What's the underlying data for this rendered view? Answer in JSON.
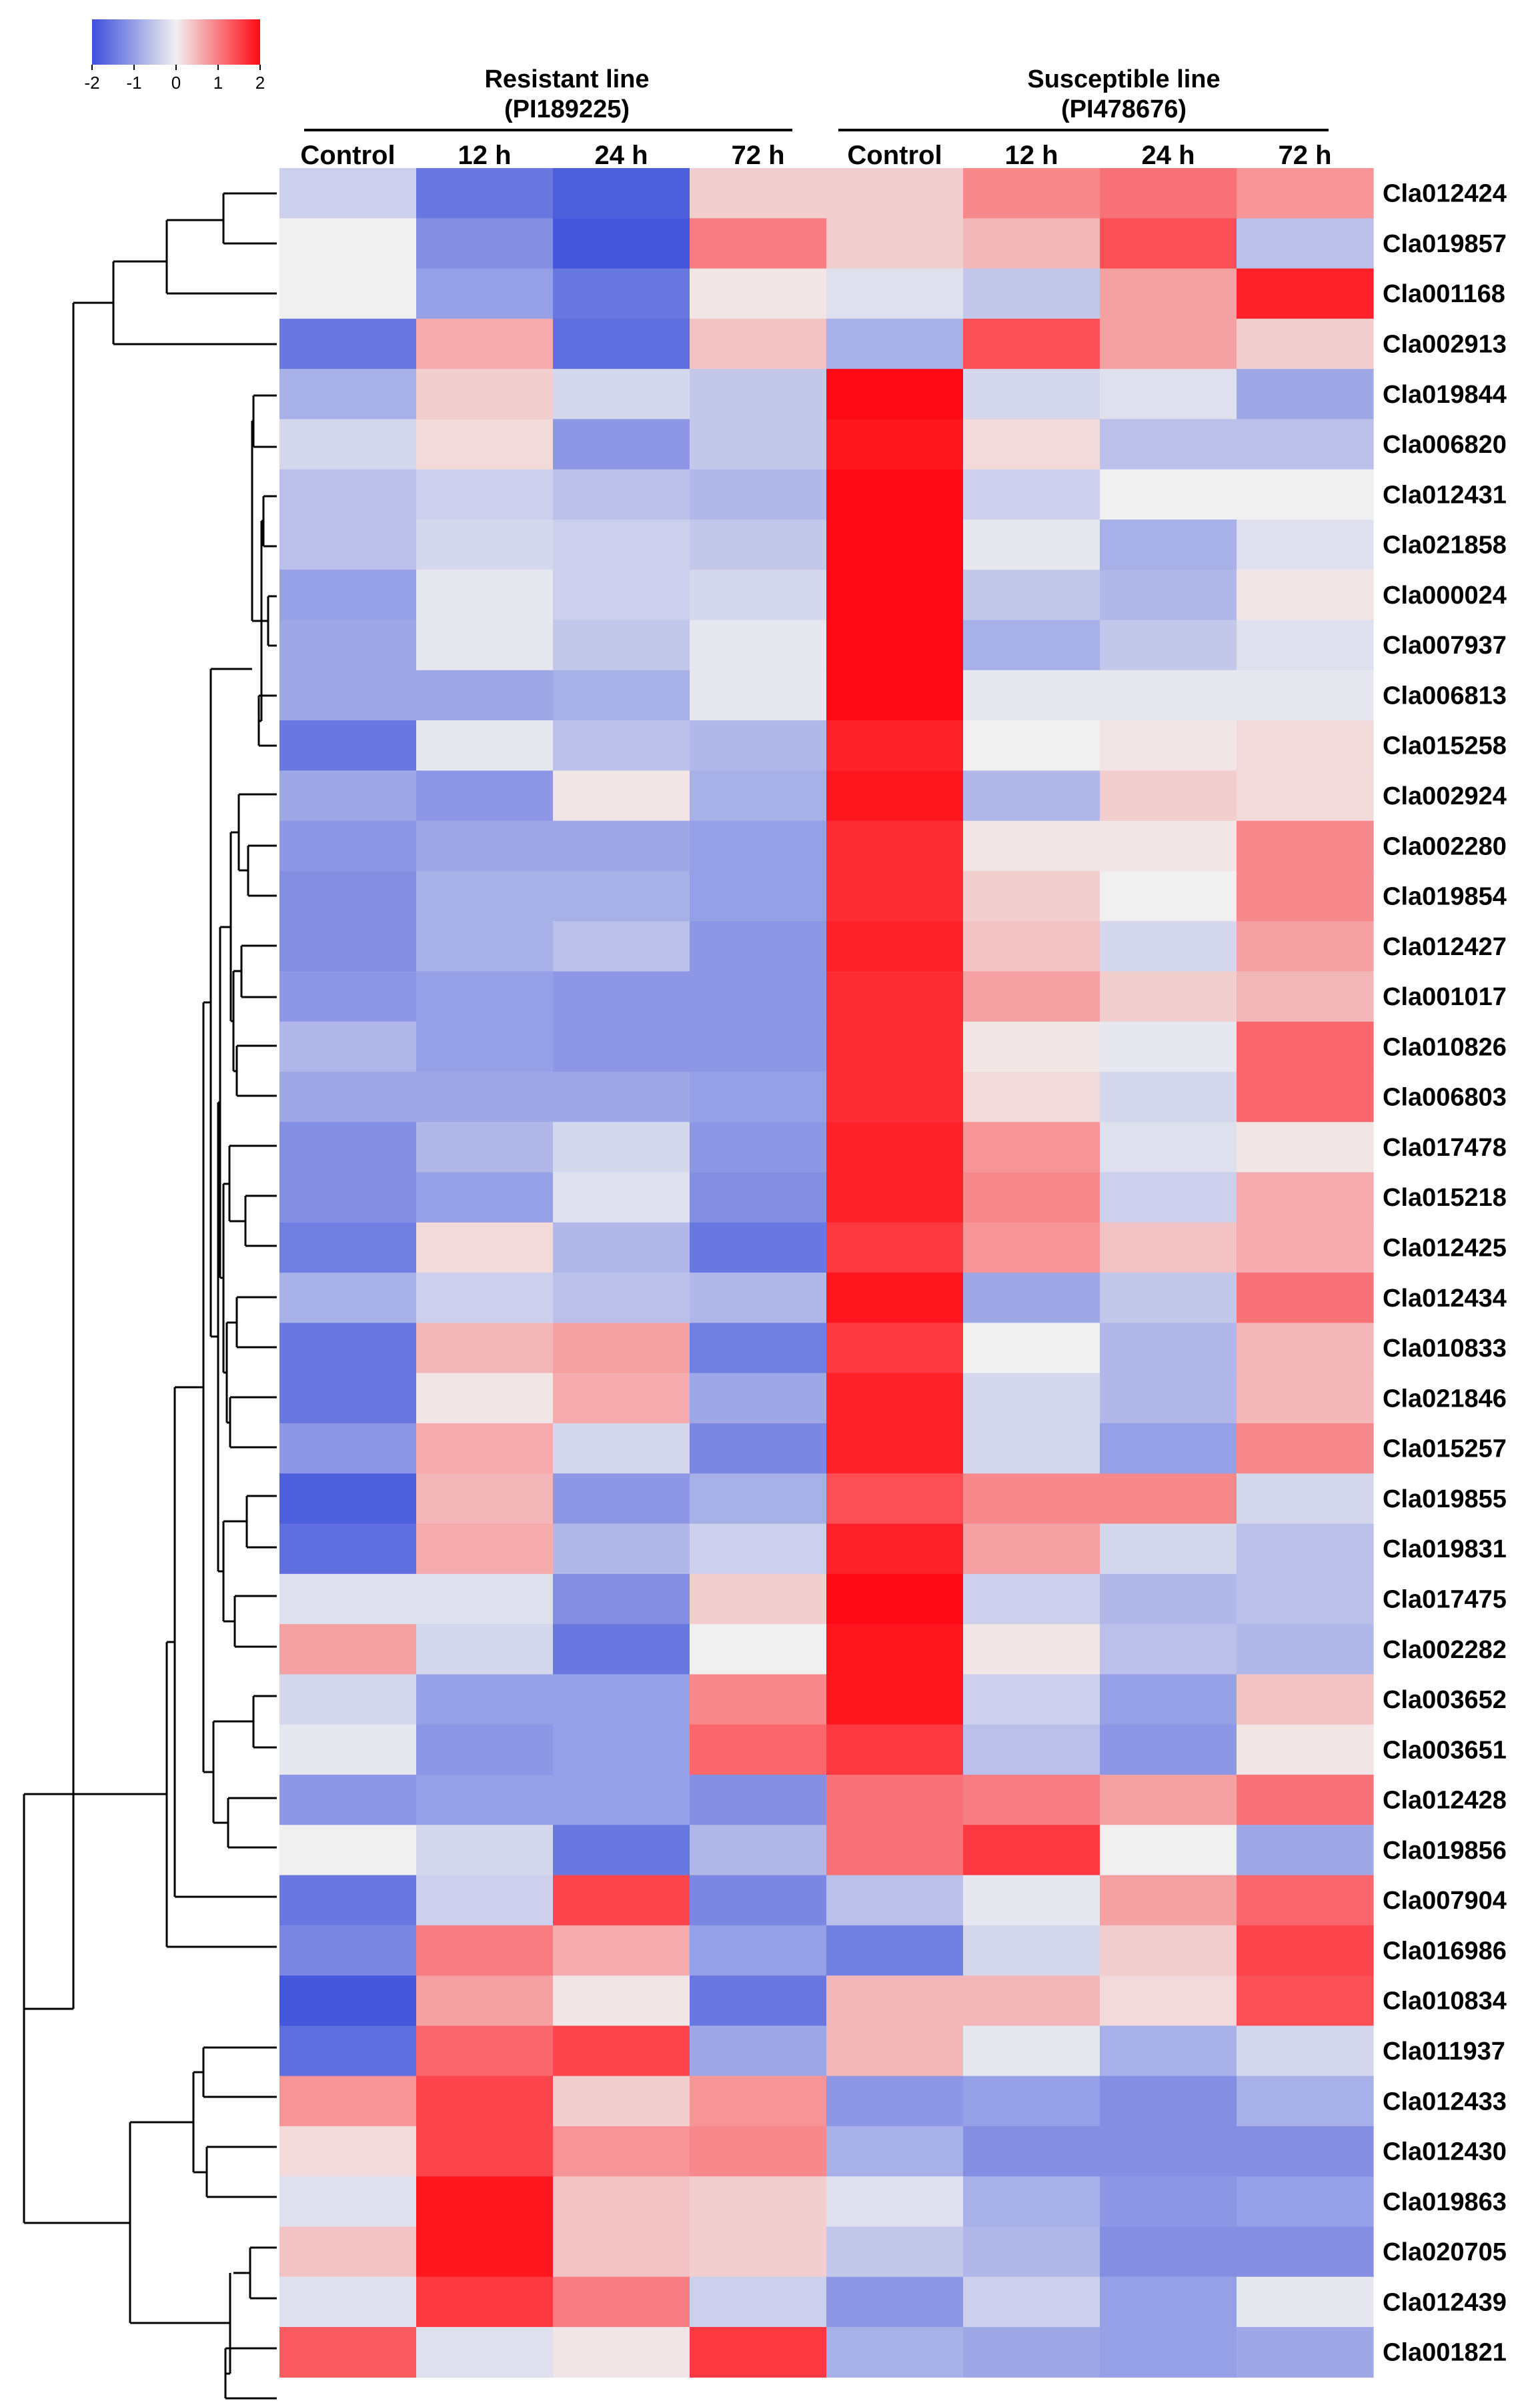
{
  "chart_data": {
    "type": "heatmap",
    "title": "",
    "color_scale": {
      "min": -2,
      "max": 2,
      "ticks": [
        "-2",
        "-1",
        "0",
        "1",
        "2"
      ],
      "low_color": "#3c4fdc",
      "mid_color": "#f0f0f0",
      "high_color": "#ff0a14"
    },
    "groups": [
      {
        "title": "Resistant line",
        "subtitle": "(PI189225)",
        "columns": [
          "Control",
          "12 h",
          "24 h",
          "72 h"
        ]
      },
      {
        "title": "Susceptible line",
        "subtitle": "(PI478676)",
        "columns": [
          "Control",
          "12 h",
          "24 h",
          "72 h"
        ]
      }
    ],
    "columns": [
      "Control",
      "12 h",
      "24 h",
      "72 h",
      "Control",
      "12 h",
      "24 h",
      "72 h"
    ],
    "rows": [
      "Cla012424",
      "Cla019857",
      "Cla001168",
      "Cla002913",
      "Cla019844",
      "Cla006820",
      "Cla012431",
      "Cla021858",
      "Cla000024",
      "Cla007937",
      "Cla006813",
      "Cla015258",
      "Cla002924",
      "Cla002280",
      "Cla019854",
      "Cla012427",
      "Cla001017",
      "Cla010826",
      "Cla006803",
      "Cla017478",
      "Cla015218",
      "Cla012425",
      "Cla012434",
      "Cla010833",
      "Cla021846",
      "Cla015257",
      "Cla019855",
      "Cla019831",
      "Cla017475",
      "Cla002282",
      "Cla003652",
      "Cla003651",
      "Cla012428",
      "Cla019856",
      "Cla007904",
      "Cla016986",
      "Cla010834",
      "Cla011937",
      "Cla012433",
      "Cla012430",
      "Cla019863",
      "Cla020705",
      "Cla012439",
      "Cla001821"
    ],
    "values": [
      [
        -0.4,
        -1.5,
        -1.8,
        0.3,
        0.3,
        0.9,
        1.1,
        0.8
      ],
      [
        0.0,
        -1.2,
        -1.9,
        1.0,
        0.3,
        0.5,
        1.4,
        -0.6
      ],
      [
        0.0,
        -1.0,
        -1.5,
        0.1,
        -0.2,
        -0.5,
        0.7,
        1.8
      ],
      [
        -1.5,
        0.6,
        -1.6,
        0.4,
        -0.8,
        1.4,
        0.7,
        0.3
      ],
      [
        -0.8,
        0.3,
        -0.3,
        -0.5,
        2.0,
        -0.3,
        -0.2,
        -0.9
      ],
      [
        -0.3,
        0.2,
        -1.1,
        -0.5,
        1.9,
        0.2,
        -0.6,
        -0.6
      ],
      [
        -0.6,
        -0.4,
        -0.6,
        -0.7,
        2.0,
        -0.4,
        0.0,
        0.0
      ],
      [
        -0.6,
        -0.3,
        -0.4,
        -0.5,
        2.0,
        -0.1,
        -0.8,
        -0.2
      ],
      [
        -1.0,
        -0.1,
        -0.4,
        -0.3,
        2.0,
        -0.5,
        -0.7,
        0.1
      ],
      [
        -0.9,
        -0.1,
        -0.5,
        -0.1,
        2.0,
        -0.8,
        -0.5,
        -0.2
      ],
      [
        -0.9,
        -0.9,
        -0.8,
        -0.1,
        2.0,
        -0.1,
        -0.1,
        -0.1
      ],
      [
        -1.5,
        -0.1,
        -0.6,
        -0.7,
        1.8,
        0.0,
        0.1,
        0.2
      ],
      [
        -0.9,
        -1.1,
        0.1,
        -0.8,
        1.9,
        -0.7,
        0.3,
        0.2
      ],
      [
        -1.1,
        -0.9,
        -0.9,
        -1.0,
        1.7,
        0.1,
        0.1,
        0.9
      ],
      [
        -1.2,
        -0.8,
        -0.8,
        -1.0,
        1.7,
        0.3,
        0.0,
        0.9
      ],
      [
        -1.2,
        -0.8,
        -0.6,
        -1.1,
        1.8,
        0.4,
        -0.3,
        0.7
      ],
      [
        -1.1,
        -1.0,
        -1.1,
        -1.1,
        1.7,
        0.7,
        0.3,
        0.5
      ],
      [
        -0.7,
        -1.0,
        -1.1,
        -1.1,
        1.7,
        0.1,
        -0.1,
        1.2
      ],
      [
        -0.9,
        -0.9,
        -0.9,
        -1.0,
        1.7,
        0.2,
        -0.3,
        1.2
      ],
      [
        -1.2,
        -0.7,
        -0.3,
        -1.1,
        1.8,
        0.8,
        -0.2,
        0.1
      ],
      [
        -1.2,
        -1.0,
        -0.2,
        -1.2,
        1.8,
        0.9,
        -0.4,
        0.6
      ],
      [
        -1.4,
        0.2,
        -0.7,
        -1.5,
        1.6,
        0.8,
        0.4,
        0.6
      ],
      [
        -0.8,
        -0.4,
        -0.6,
        -0.7,
        1.9,
        -0.9,
        -0.5,
        1.1
      ],
      [
        -1.5,
        0.5,
        0.7,
        -1.4,
        1.6,
        0.0,
        -0.7,
        0.5
      ],
      [
        -1.5,
        0.1,
        0.6,
        -0.9,
        1.8,
        -0.3,
        -0.7,
        0.5
      ],
      [
        -1.1,
        0.6,
        -0.3,
        -1.3,
        1.8,
        -0.3,
        -1.0,
        0.9
      ],
      [
        -1.8,
        0.5,
        -1.1,
        -0.8,
        1.4,
        0.9,
        0.9,
        -0.3
      ],
      [
        -1.6,
        0.6,
        -0.7,
        -0.4,
        1.8,
        0.7,
        -0.3,
        -0.6
      ],
      [
        -0.2,
        -0.2,
        -1.2,
        0.3,
        2.0,
        -0.4,
        -0.7,
        -0.6
      ],
      [
        0.7,
        -0.3,
        -1.5,
        0.0,
        1.9,
        0.1,
        -0.6,
        -0.7
      ],
      [
        -0.3,
        -1.0,
        -1.0,
        0.9,
        1.9,
        -0.4,
        -1.0,
        0.4
      ],
      [
        -0.1,
        -1.1,
        -1.0,
        1.2,
        1.6,
        -0.6,
        -1.1,
        0.1
      ],
      [
        -1.1,
        -1.0,
        -1.0,
        -1.2,
        1.1,
        1.0,
        0.7,
        1.1
      ],
      [
        0.0,
        -0.3,
        -1.5,
        -0.7,
        1.1,
        1.6,
        0.0,
        -0.9
      ],
      [
        -1.5,
        -0.4,
        1.5,
        -1.3,
        -0.6,
        -0.1,
        0.7,
        1.2
      ],
      [
        -1.3,
        1.0,
        0.6,
        -1.0,
        -1.4,
        -0.3,
        0.3,
        1.5
      ],
      [
        -1.9,
        0.7,
        0.1,
        -1.5,
        0.5,
        0.5,
        0.2,
        1.4
      ],
      [
        -1.6,
        1.2,
        1.5,
        -0.9,
        0.5,
        -0.1,
        -0.8,
        -0.3
      ],
      [
        0.8,
        1.5,
        0.3,
        0.8,
        -1.1,
        -1.0,
        -1.2,
        -0.8
      ],
      [
        0.2,
        1.5,
        0.8,
        0.9,
        -0.8,
        -1.2,
        -1.2,
        -1.2
      ],
      [
        -0.2,
        1.9,
        0.4,
        0.3,
        -0.2,
        -0.8,
        -1.1,
        -1.0
      ],
      [
        0.4,
        1.9,
        0.4,
        0.3,
        -0.5,
        -0.7,
        -1.2,
        -1.2
      ],
      [
        -0.2,
        1.6,
        1.0,
        -0.4,
        -1.1,
        -0.4,
        -1.0,
        -0.1
      ],
      [
        1.3,
        -0.2,
        0.1,
        1.6,
        -0.8,
        -0.9,
        -1.0,
        -0.9
      ]
    ]
  }
}
